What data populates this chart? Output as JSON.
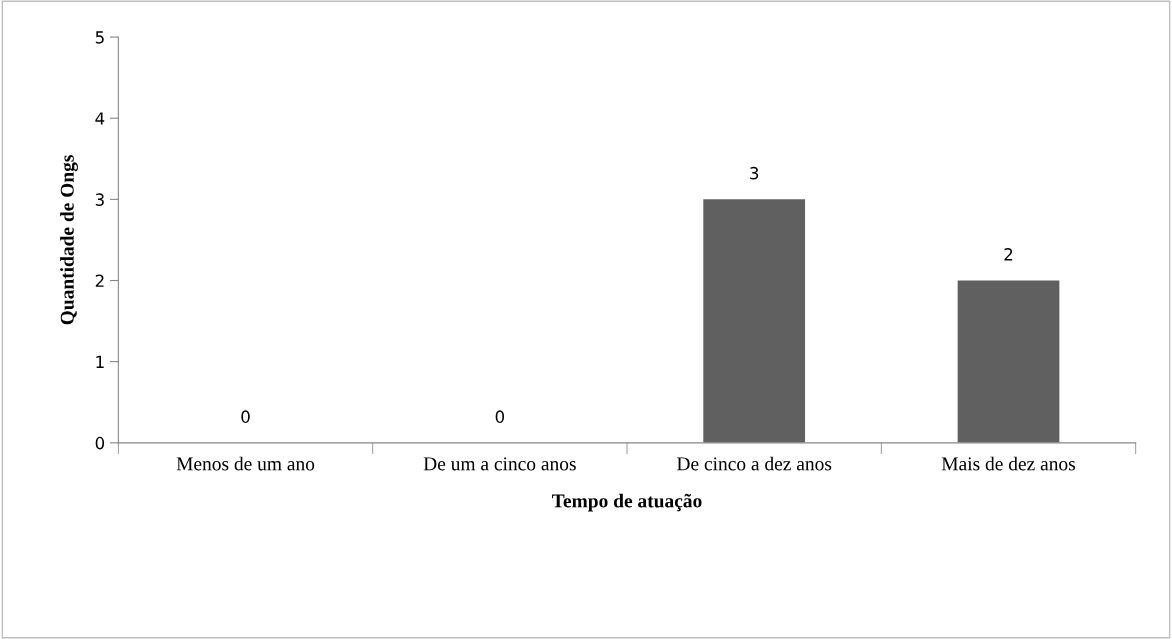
{
  "chart_data": {
    "type": "bar",
    "xlabel": "Tempo de atuação",
    "ylabel": "Quantidade de Ongs",
    "categories": [
      "Menos de um ano",
      "De um a cinco anos",
      "De cinco a dez anos",
      "Mais de dez anos"
    ],
    "values": [
      0,
      0,
      3,
      2
    ],
    "color": "#606060",
    "ylim": [
      0,
      5
    ],
    "yticks": [
      0,
      1,
      2,
      3,
      4,
      5
    ],
    "grid": false,
    "data_labels": true
  }
}
